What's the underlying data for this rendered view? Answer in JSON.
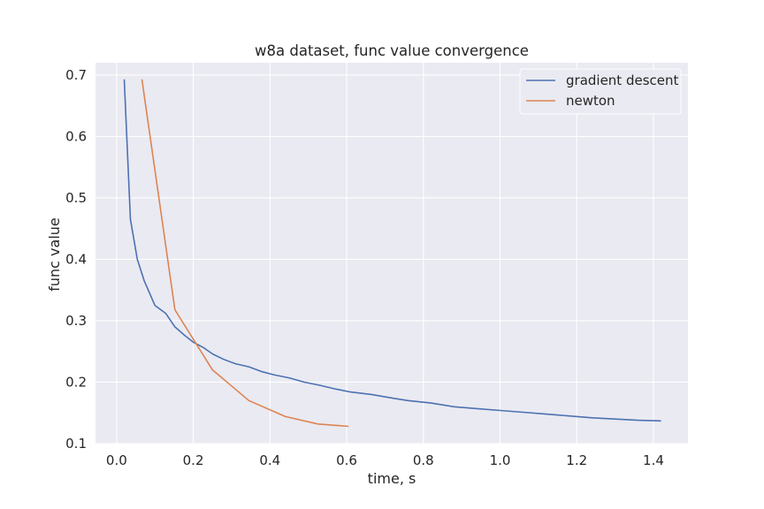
{
  "chart_data": {
    "type": "line",
    "title": "w8a dataset, func value convergence",
    "xlabel": "time, s",
    "ylabel": "func value",
    "xlim": [
      -0.055,
      1.49
    ],
    "ylim": [
      0.1,
      0.72
    ],
    "xticks": [
      0.0,
      0.2,
      0.4,
      0.6,
      0.8,
      1.0,
      1.2,
      1.4
    ],
    "xtick_labels": [
      "0.0",
      "0.2",
      "0.4",
      "0.6",
      "0.8",
      "1.0",
      "1.2",
      "1.4"
    ],
    "yticks": [
      0.1,
      0.2,
      0.3,
      0.4,
      0.5,
      0.6,
      0.7
    ],
    "ytick_labels": [
      "0.1",
      "0.2",
      "0.3",
      "0.4",
      "0.5",
      "0.6",
      "0.7"
    ],
    "grid": true,
    "legend_position": "top-right",
    "background": "#eaeaf2",
    "series": [
      {
        "name": "gradient descent",
        "color": "#4c72b0",
        "x": [
          0.02,
          0.036,
          0.054,
          0.072,
          0.1,
          0.128,
          0.152,
          0.176,
          0.2,
          0.225,
          0.25,
          0.28,
          0.31,
          0.345,
          0.38,
          0.41,
          0.45,
          0.49,
          0.53,
          0.57,
          0.61,
          0.665,
          0.72,
          0.76,
          0.82,
          0.88,
          0.94,
          1.0,
          1.06,
          1.12,
          1.18,
          1.24,
          1.3,
          1.36,
          1.42
        ],
        "y": [
          0.693,
          0.465,
          0.4,
          0.365,
          0.325,
          0.312,
          0.29,
          0.277,
          0.265,
          0.257,
          0.246,
          0.237,
          0.23,
          0.225,
          0.217,
          0.212,
          0.207,
          0.2,
          0.195,
          0.189,
          0.184,
          0.18,
          0.174,
          0.17,
          0.166,
          0.16,
          0.157,
          0.154,
          0.151,
          0.148,
          0.145,
          0.142,
          0.14,
          0.138,
          0.137
        ]
      },
      {
        "name": "newton",
        "color": "#dd8452",
        "x": [
          0.066,
          0.152,
          0.25,
          0.345,
          0.44,
          0.525,
          0.605
        ],
        "y": [
          0.693,
          0.318,
          0.22,
          0.17,
          0.144,
          0.132,
          0.128
        ]
      }
    ]
  }
}
